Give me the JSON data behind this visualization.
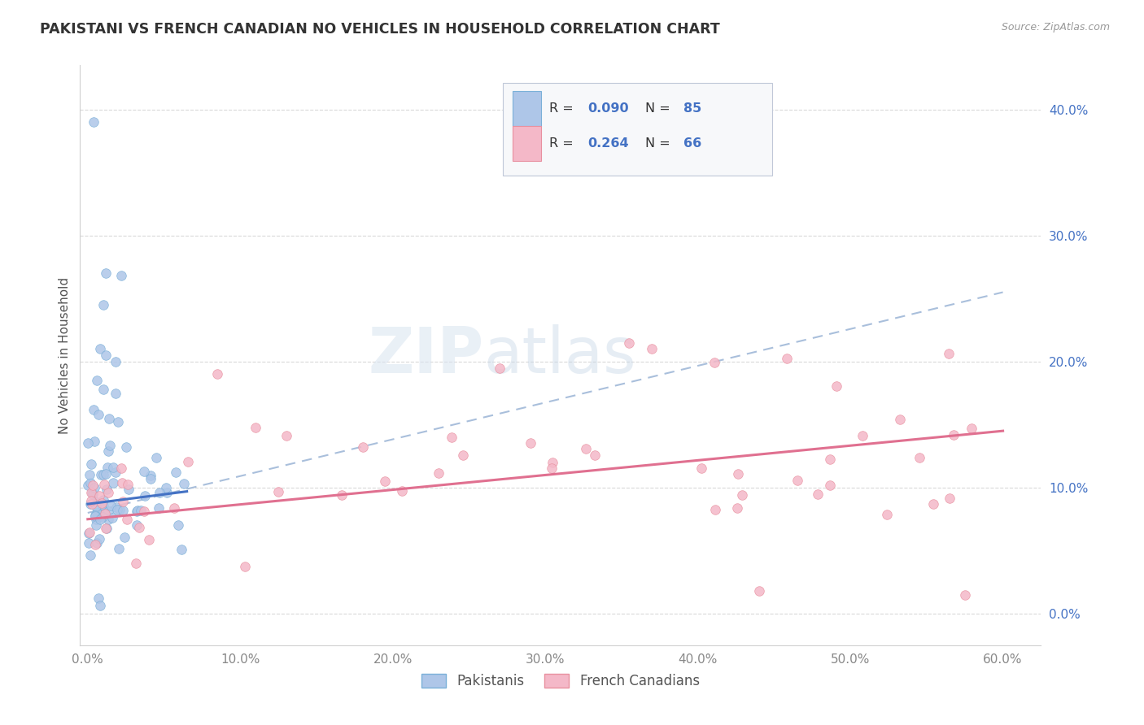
{
  "title": "PAKISTANI VS FRENCH CANADIAN NO VEHICLES IN HOUSEHOLD CORRELATION CHART",
  "source": "Source: ZipAtlas.com",
  "ylabel_label": "No Vehicles in Household",
  "watermark_zip": "ZIP",
  "watermark_atlas": "atlas",
  "pak_color": "#aec6e8",
  "pak_edge": "#7ab0d8",
  "pak_line_color": "#4472c4",
  "fr_color": "#f4b8c8",
  "fr_edge": "#e8909f",
  "fr_line_color": "#e07090",
  "dashed_color": "#a0b8d8",
  "legend_pak_R": "0.090",
  "legend_pak_N": "85",
  "legend_fr_R": "0.264",
  "legend_fr_N": "66",
  "legend_R_color": "#4472c4",
  "legend_N_color": "#4472c4",
  "ytick_color": "#4472c4",
  "xtick_color": "#888888",
  "grid_color": "#d0d0d0",
  "x_ticks": [
    0.0,
    0.1,
    0.2,
    0.3,
    0.4,
    0.5,
    0.6
  ],
  "y_ticks": [
    0.0,
    0.1,
    0.2,
    0.3,
    0.4
  ],
  "xlim": [
    -0.005,
    0.625
  ],
  "ylim": [
    -0.025,
    0.435
  ],
  "pak_line_x": [
    0.0,
    0.065
  ],
  "pak_line_y": [
    0.087,
    0.097
  ],
  "fr_line_x": [
    0.0,
    0.6
  ],
  "fr_line_y": [
    0.075,
    0.145
  ],
  "dashed_line_x": [
    0.0,
    0.6
  ],
  "dashed_line_y": [
    0.08,
    0.255
  ]
}
